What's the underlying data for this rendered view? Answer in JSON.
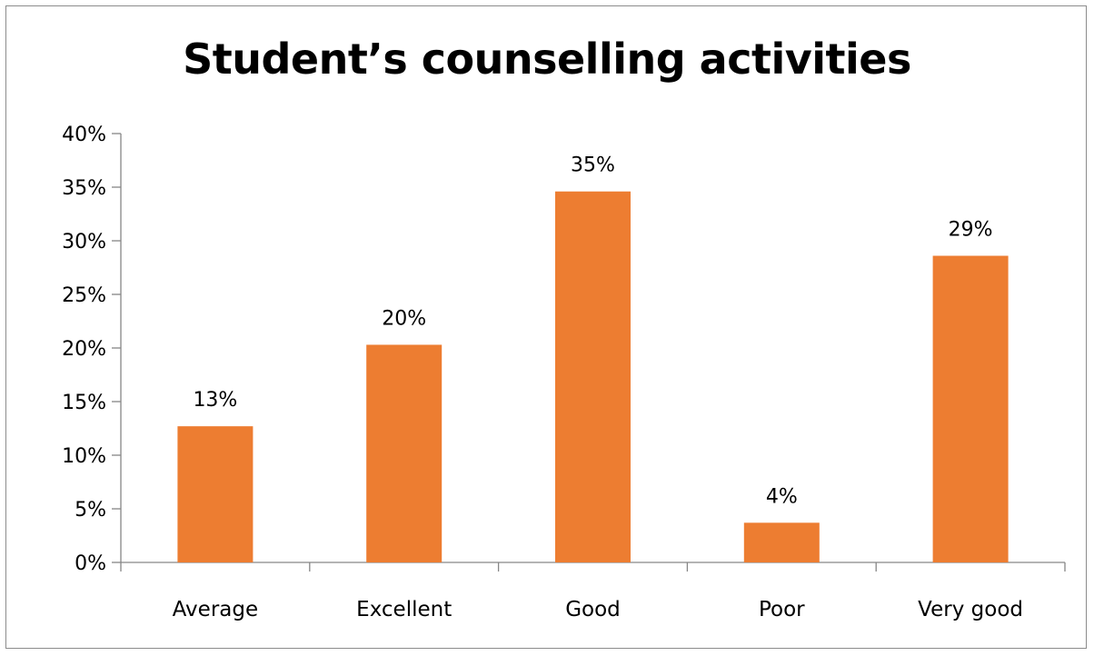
{
  "chart_data": {
    "type": "bar",
    "title": "Student’s counselling activities",
    "xlabel": "",
    "ylabel": "",
    "categories": [
      "Average",
      "Excellent",
      "Good",
      "Poor",
      "Very good"
    ],
    "values": [
      12.7,
      20.3,
      34.6,
      3.7,
      28.6
    ],
    "data_labels": [
      "13%",
      "20%",
      "35%",
      "4%",
      "29%"
    ],
    "ylim": [
      0,
      40
    ],
    "y_ticks": [
      0,
      5,
      10,
      15,
      20,
      25,
      30,
      35,
      40
    ],
    "y_tick_labels": [
      "0%",
      "5%",
      "10%",
      "15%",
      "20%",
      "25%",
      "30%",
      "35%",
      "40%"
    ],
    "bar_color": "#ED7D31",
    "axis_color": "#868686",
    "grid": false,
    "legend": "none"
  }
}
